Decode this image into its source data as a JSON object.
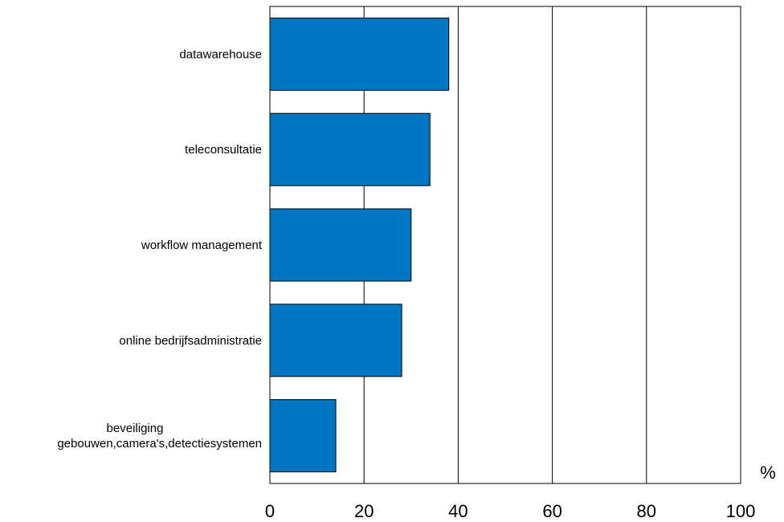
{
  "chart_data": {
    "type": "bar",
    "orientation": "horizontal",
    "categories": [
      [
        "datawarehouse"
      ],
      [
        "teleconsultatie"
      ],
      [
        "workflow management"
      ],
      [
        "online bedrijfsadministratie"
      ],
      [
        "beveiliging",
        "gebouwen,camera's,detectiesystemen"
      ]
    ],
    "values": [
      38,
      34,
      30,
      28,
      14
    ],
    "xlim": [
      0,
      100
    ],
    "xticks": [
      "0",
      "20",
      "40",
      "60",
      "80",
      "100"
    ],
    "xlabel": "%",
    "grid": "vertical",
    "bar_color": "#0077C4",
    "bar_edge_color": "#000000"
  }
}
